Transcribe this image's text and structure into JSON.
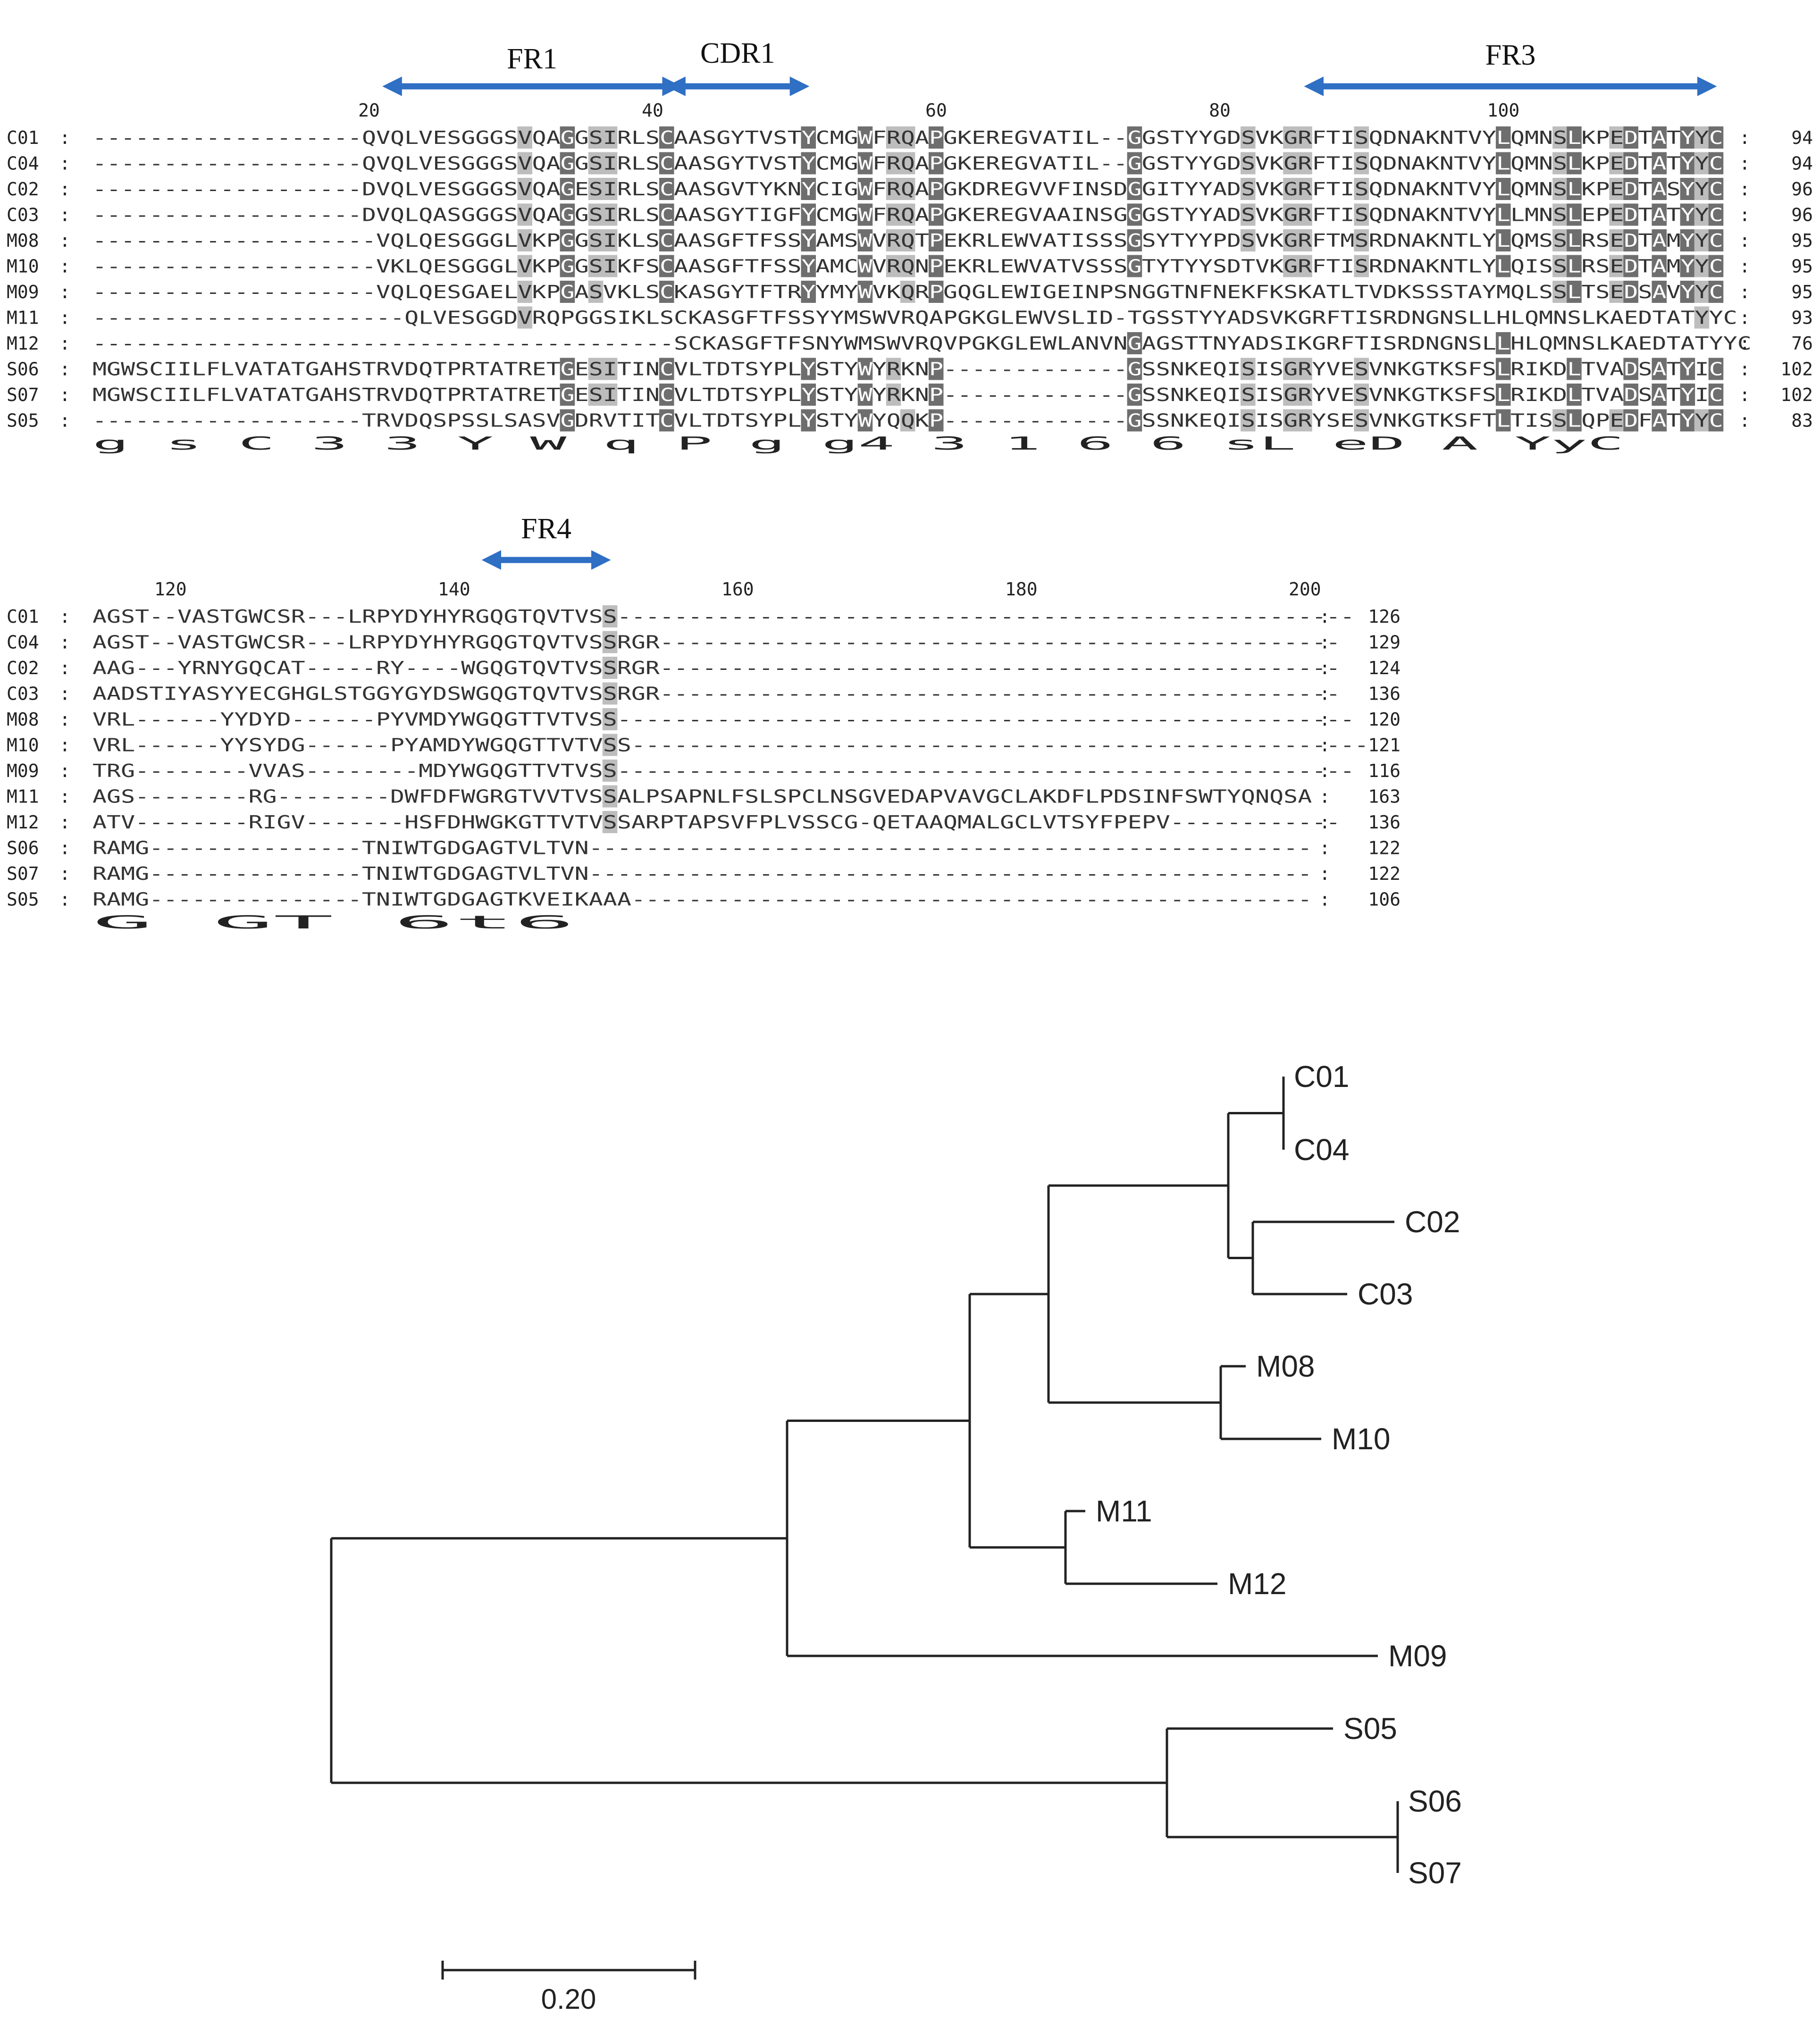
{
  "alignment": {
    "block1": {
      "start": 1,
      "rows": [
        {
          "name": "C01",
          "seq": "-------------------QVQLVESGGGSVQAGGSIRLSCAASGYTVSTYCMGWFRQAPGKEREGVATIL--GGSTYYGDSVKGRFTISQDNAKNTVYLQMNSLKPEDTATYYC",
          "count": "94"
        },
        {
          "name": "C04",
          "seq": "-------------------QVQLVESGGGSVQAGGSIRLSCAASGYTVSTYCMGWFRQAPGKEREGVATIL--GGSTYYGDSVKGRFTISQDNAKNTVYLQMNSLKPEDTATYYC",
          "count": "94"
        },
        {
          "name": "C02",
          "seq": "-------------------DVQLVESGGGSVQAGESIRLSCAASGVTYKNYCIGWFRQAPGKDREGVVFINSDGGITYYADSVKGRFTISQDNAKNTVYLQMNSLKPEDTASYYC",
          "count": "96"
        },
        {
          "name": "C03",
          "seq": "-------------------DVQLQASGGGSVQAGGSIRLSCAASGYTIGFYCMGWFRQAPGKEREGVAAINSGGGSTYYADSVKGRFTISQDNAKNTVYLLMNSLEPEDTATYYC",
          "count": "96"
        },
        {
          "name": "M08",
          "seq": "--------------------VQLQESGGGLVKPGGSIKLSCAASGFTFSSYAMSWVRQTPEKRLEWVATISSSGSYTYYPDSVKGRFTMSRDNAKNTLYLQMSSLRSEDTAMYYC",
          "count": "95"
        },
        {
          "name": "M10",
          "seq": "--------------------VKLQESGGGLVKPGGSIKFSCAASGFTFSSYAMCWVRQNPEKRLEWVATVSSSGTYTYYSDTVKGRFTISRDNAKNTLYLQISSLRSEDTAMYYC",
          "count": "95"
        },
        {
          "name": "M09",
          "seq": "--------------------VQLQESGAELVKPGASVKLSCKASGYTFTRYYMYWVKQRPGQGLEWIGEINPSNGGTNFNEKFKSKATLTVDKSSSTAYMQLSSLTSEDSAVYYC",
          "count": "95"
        },
        {
          "name": "M11",
          "seq": "----------------------QLVESGGDVRQPGGSIKLSCKASGFTFSSYYMSWVRQAPGKGLEWVSLID-TGSSTYYADSVKGRFTISRDNGNSLLHLQMNSLKAEDTATYYC",
          "count": "93"
        },
        {
          "name": "M12",
          "seq": "-----------------------------------------SCKASGFTFSNYWMSWVRQVPGKGLEWLANVNGAGSTTNYADSIKGRFTISRDNGNSLLHLQMNSLKAEDTATYYC",
          "count": "76"
        },
        {
          "name": "S06",
          "seq": "MGWSCIILFLVATATGAHSTRVDQTPRTATRETGESITINCVLTDTSYPLYSTYWYRKNP-------------GSSNKEQISISGRYVESVNKGTKSFSLRIKDLTVADSATYIC",
          "count": "102"
        },
        {
          "name": "S07",
          "seq": "MGWSCIILFLVATATGAHSTRVDQTPRTATRETGESITINCVLTDTSYPLYSTYWYRKNP-------------GSSNKEQISISGRYVESVNKGTKSFSLRIKDLTVADSATYIC",
          "count": "102"
        },
        {
          "name": "S05",
          "seq": "-------------------TRVDQSPSSLSASVGDRVTITCVLTDTSYPLYSTYWYQQKP-------------GSSNKEQISISGRYSESVNKGTKSFTLTISSLQPEDFATYYC",
          "count": "83"
        }
      ],
      "consensus": "                          g s      C  3  3   Y   W  q P             g          g4   3 1     6 6 sL  eD A YyC",
      "ruler": [
        "20",
        "40",
        "60",
        "80",
        "100"
      ],
      "regions": [
        {
          "label": "FR1",
          "from": 22,
          "to": 41
        },
        {
          "label": "CDR1",
          "from": 42,
          "to": 50
        },
        {
          "label": "FR3",
          "from": 87,
          "to": 114
        }
      ]
    },
    "block2": {
      "start": 115,
      "rows": [
        {
          "name": "C01",
          "seq": "AGST--VASTGWCSR---LRPYDYHYRGQGTQVTVSS----------------------------------------------------",
          "count": "126"
        },
        {
          "name": "C04",
          "seq": "AGST--VASTGWCSR---LRPYDYHYRGQGTQVTVSSRGR------------------------------------------------",
          "count": "129"
        },
        {
          "name": "C02",
          "seq": "AAG---YRNYGQCAT-----RY----WGQGTQVTVSSRGR------------------------------------------------",
          "count": "124"
        },
        {
          "name": "C03",
          "seq": "AADSTIYASYYECGHGLSTGGYGYDSWGQGTQVTVSSRGR------------------------------------------------",
          "count": "136"
        },
        {
          "name": "M08",
          "seq": "VRL------YYDYD------PYVMDYWGQGTTVTVSS----------------------------------------------------",
          "count": "120"
        },
        {
          "name": "M10",
          "seq": "VRL------YYSYDG------PYAMDYWGQGTTVTVSS----------------------------------------------------",
          "count": "121"
        },
        {
          "name": "M09",
          "seq": "TRG--------VVAS--------MDYWGQGTTVTVSS----------------------------------------------------",
          "count": "116"
        },
        {
          "name": "M11",
          "seq": "AGS--------RG--------DWFDFWGRGTVVTVSSALPSAPNLFSLSPCLNSGVEDAPVAVGCLAKDFLPDSINFSWTYQNQSA",
          "count": "163"
        },
        {
          "name": "M12",
          "seq": "ATV--------RIGV-------HSFDHWGKGTTVTVSSARPTAPSVFPLVSSCG-QETAAQMALGCLVTSYFPEPV------------",
          "count": "136"
        },
        {
          "name": "S06",
          "seq": "RAMG---------------TNIWTGDGAGTVLTVN---------------------------------------------------",
          "count": "122"
        },
        {
          "name": "S07",
          "seq": "RAMG---------------TNIWTGDGAGTVLTVN---------------------------------------------------",
          "count": "122"
        },
        {
          "name": "S05",
          "seq": "RAMG---------------TNIWTGDGAGTKVEIKAAA------------------------------------------------",
          "count": "106"
        }
      ],
      "consensus": "                          G GT 6t6",
      "ruler": [
        "120",
        "140",
        "160",
        "180",
        "200"
      ],
      "regions": [
        {
          "label": "FR4",
          "from": 143,
          "to": 150
        }
      ]
    },
    "colors": {
      "black_bg": "#000000",
      "dark_gray": "#6e6e6e",
      "light_gray": "#bdbdbd",
      "arrow": "#2f6fc4"
    }
  },
  "tree": {
    "leaves": [
      "C01",
      "C04",
      "C02",
      "C03",
      "M08",
      "M10",
      "M11",
      "M12",
      "M09",
      "S05",
      "S06",
      "S07"
    ],
    "scale_label": "0.20"
  }
}
